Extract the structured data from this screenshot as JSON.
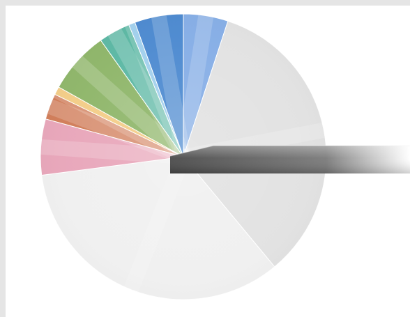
{
  "chart_data": {
    "type": "pie",
    "title": "",
    "slices": [
      {
        "value": 5.5,
        "color": "#86aee6"
      },
      {
        "value": 37.0,
        "color": "#e2e2e2"
      },
      {
        "value": 37.0,
        "color": "#f0f0f0"
      },
      {
        "value": 6.9,
        "color": "#e8a6ba"
      },
      {
        "value": 3.2,
        "color": "#d17d59"
      },
      {
        "value": 1.0,
        "color": "#f1c36e"
      },
      {
        "value": 7.7,
        "color": "#8fb66a"
      },
      {
        "value": 3.9,
        "color": "#5cb8a4"
      },
      {
        "value": 0.8,
        "color": "#8ec6ea"
      },
      {
        "value": 6.0,
        "color": "#4d8ad0"
      }
    ],
    "legend": [],
    "pointer": {
      "color": "#6f6f6f"
    }
  }
}
